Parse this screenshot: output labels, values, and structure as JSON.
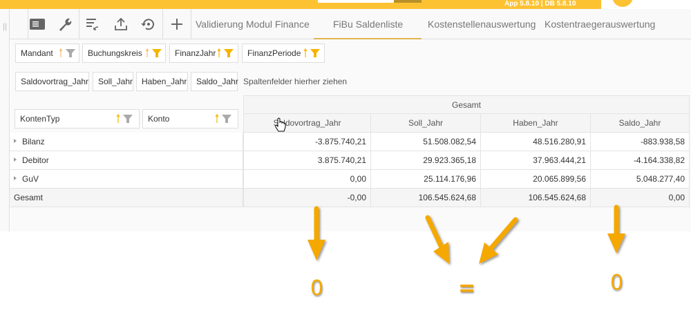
{
  "header": {
    "version": "App 5.8.10 | DB 5.8.10"
  },
  "toolbar": {
    "icons": [
      "panel-icon",
      "wrench-icon",
      "sort-list-icon",
      "upload-icon",
      "restore-icon",
      "plus-icon"
    ]
  },
  "tabs": [
    {
      "label": "Validierung Modul Finance",
      "active": false
    },
    {
      "label": "FiBu Saldenliste",
      "active": true
    },
    {
      "label": "Kostenstellenauswertung",
      "active": false
    },
    {
      "label": "Kostentraegerauswertung",
      "active": false
    }
  ],
  "filter_fields": [
    {
      "label": "Mandant",
      "filter_active": false
    },
    {
      "label": "Buchungskreis",
      "filter_active": true
    },
    {
      "label": "FinanzJahr",
      "filter_active": true
    },
    {
      "label": "FinanzPeriode",
      "filter_active": true
    }
  ],
  "data_fields": [
    "Saldovortrag_Jahr",
    "Soll_Jahr",
    "Haben_Jahr",
    "Saldo_Jahr"
  ],
  "column_hint": "Spaltenfelder hierher ziehen",
  "row_fields": [
    "KontenTyp",
    "Konto"
  ],
  "table": {
    "group_header": "Gesamt",
    "columns": [
      "Saldovortrag_Jahr",
      "Soll_Jahr",
      "Haben_Jahr",
      "Saldo_Jahr"
    ],
    "rows": [
      {
        "label": "Bilanz",
        "values": [
          "-3.875.740,21",
          "51.508.082,54",
          "48.516.280,91",
          "-883.938,58"
        ]
      },
      {
        "label": "Debitor",
        "values": [
          "3.875.740,21",
          "29.923.365,18",
          "37.963.444,21",
          "-4.164.338,82"
        ]
      },
      {
        "label": "GuV",
        "values": [
          "0,00",
          "25.114.176,96",
          "20.065.899,56",
          "5.048.277,40"
        ]
      }
    ],
    "total": {
      "label": "Gesamt",
      "values": [
        "-0,00",
        "106.545.624,68",
        "106.545.624,68",
        "0,00"
      ]
    }
  },
  "annotations": {
    "left": "0",
    "middle": "=",
    "right": "0",
    "color": "#f5a800"
  },
  "colors": {
    "accent": "#fcc232",
    "filter_active": "#f5b400",
    "filter_inactive": "#aaaaaa"
  }
}
